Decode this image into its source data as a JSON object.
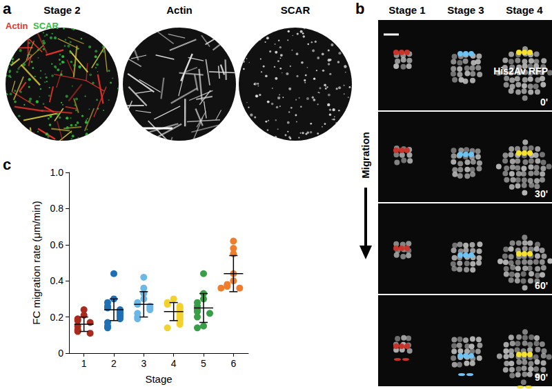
{
  "panel_labels": [
    "a",
    "b",
    "c"
  ],
  "panel_a": {
    "title": "Stage 2",
    "merge_channels": [
      "Actin",
      "SCAR"
    ],
    "merge_colors": [
      "#e8332a",
      "#2fbf3a"
    ],
    "channels": [
      "Actin",
      "SCAR"
    ]
  },
  "panel_b": {
    "columns": [
      "Stage 1",
      "Stage 3",
      "Stage 4"
    ],
    "stain": "His2Av RFP",
    "times": [
      "0'",
      "30'",
      "60'",
      "90'"
    ],
    "arrow": "Migration",
    "track_colors": [
      "#c8342a",
      "#6ec3f2",
      "#f5e12e"
    ]
  },
  "chart_data": {
    "type": "scatter",
    "xlabel": "Stage",
    "ylabel": "FC migration rate (μm/min)",
    "categories": [
      "1",
      "2",
      "3",
      "4",
      "5",
      "6"
    ],
    "colors": [
      "#a82b1e",
      "#1f6fb5",
      "#6bb8e6",
      "#f2d22e",
      "#3a9d48",
      "#f07d2b"
    ],
    "values": [
      [
        0.24,
        0.21,
        0.19,
        0.18,
        0.17,
        0.15,
        0.13,
        0.12,
        0.11
      ],
      [
        0.44,
        0.3,
        0.28,
        0.26,
        0.25,
        0.24,
        0.23,
        0.22,
        0.21,
        0.2,
        0.19,
        0.17,
        0.15,
        0.14
      ],
      [
        0.42,
        0.36,
        0.33,
        0.3,
        0.28,
        0.27,
        0.26,
        0.25,
        0.24,
        0.22,
        0.2,
        0.19
      ],
      [
        0.3,
        0.28,
        0.27,
        0.26,
        0.25,
        0.24,
        0.23,
        0.22,
        0.21,
        0.2,
        0.19,
        0.18,
        0.17,
        0.16,
        0.14
      ],
      [
        0.44,
        0.33,
        0.3,
        0.28,
        0.26,
        0.24,
        0.23,
        0.22,
        0.2,
        0.15,
        0.14
      ],
      [
        0.62,
        0.58,
        0.55,
        0.44,
        0.4,
        0.38,
        0.37,
        0.36,
        0.36
      ]
    ],
    "mean": [
      0.16,
      0.24,
      0.27,
      0.23,
      0.25,
      0.44
    ],
    "sd": [
      0.04,
      0.06,
      0.07,
      0.05,
      0.08,
      0.1
    ],
    "ylim": [
      0,
      1
    ],
    "yticks": [
      0,
      0.2,
      0.4,
      0.6,
      0.8,
      {
        "value": 1,
        "label": "1.0"
      }
    ],
    "grid": false
  }
}
